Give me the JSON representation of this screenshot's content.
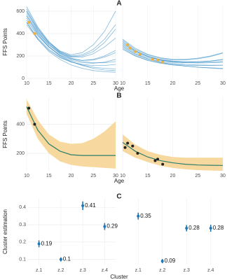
{
  "chart_data": [
    {
      "type": "line",
      "panel": "A",
      "ylabel": "FFS Points",
      "xlabel": "Age",
      "x": [
        10,
        12.5,
        15,
        17.5,
        20,
        22.5,
        25,
        27.5,
        30
      ],
      "xlim": [
        10,
        30
      ],
      "xticks": [
        10,
        15,
        20,
        25,
        30
      ],
      "ylim": [
        0,
        650
      ],
      "yticks": [
        0,
        200,
        400,
        600
      ],
      "color": "#1f7fc0",
      "point_color": "#f0b13c",
      "series": [
        {
          "values": [
            600,
            430,
            310,
            230,
            180,
            160,
            170,
            200,
            250
          ]
        },
        {
          "values": [
            560,
            410,
            300,
            225,
            190,
            190,
            220,
            280,
            360
          ]
        },
        {
          "values": [
            520,
            380,
            280,
            210,
            170,
            150,
            140,
            140,
            150
          ]
        },
        {
          "values": [
            640,
            460,
            330,
            240,
            200,
            210,
            260,
            350,
            480
          ]
        },
        {
          "values": [
            500,
            360,
            260,
            190,
            150,
            120,
            100,
            90,
            85
          ]
        },
        {
          "values": [
            580,
            420,
            300,
            220,
            175,
            160,
            165,
            190,
            230
          ]
        },
        {
          "values": [
            540,
            390,
            280,
            200,
            150,
            115,
            90,
            75,
            70
          ]
        },
        {
          "values": [
            620,
            450,
            320,
            235,
            195,
            200,
            240,
            320,
            440
          ]
        },
        {
          "values": [
            480,
            350,
            250,
            185,
            145,
            125,
            115,
            115,
            125
          ]
        },
        {
          "values": [
            560,
            400,
            285,
            205,
            160,
            140,
            135,
            145,
            170
          ]
        },
        {
          "values": [
            600,
            440,
            320,
            245,
            210,
            230,
            300,
            420,
            600
          ]
        },
        {
          "values": [
            500,
            350,
            240,
            170,
            120,
            90,
            70,
            60,
            55
          ]
        }
      ],
      "points": {
        "x": [
          10.5,
          11.8
        ],
        "y": [
          500,
          400
        ]
      }
    },
    {
      "type": "line",
      "x": [
        10,
        12.5,
        15,
        17.5,
        20,
        22.5,
        25,
        27.5,
        30
      ],
      "xlim": [
        10,
        30
      ],
      "xticks": [
        10,
        15,
        20,
        25,
        30
      ],
      "ylim": [
        0,
        650
      ],
      "color": "#1f7fc0",
      "point_color": "#f0b13c",
      "series": [
        {
          "values": [
            330,
            250,
            200,
            170,
            155,
            150,
            150,
            155,
            165
          ]
        },
        {
          "values": [
            300,
            230,
            185,
            160,
            145,
            140,
            140,
            145,
            150
          ]
        },
        {
          "values": [
            280,
            215,
            175,
            150,
            135,
            125,
            120,
            118,
            118
          ]
        },
        {
          "values": [
            350,
            270,
            215,
            185,
            170,
            170,
            180,
            200,
            230
          ]
        },
        {
          "values": [
            260,
            200,
            160,
            135,
            120,
            110,
            100,
            95,
            90
          ]
        },
        {
          "values": [
            310,
            240,
            195,
            165,
            150,
            145,
            148,
            155,
            170
          ]
        },
        {
          "values": [
            290,
            220,
            175,
            145,
            125,
            110,
            100,
            92,
            85
          ]
        },
        {
          "values": [
            340,
            260,
            210,
            180,
            165,
            165,
            175,
            195,
            225
          ]
        },
        {
          "values": [
            270,
            205,
            165,
            140,
            125,
            118,
            115,
            115,
            118
          ]
        },
        {
          "values": [
            320,
            245,
            195,
            165,
            148,
            140,
            138,
            140,
            145
          ]
        }
      ],
      "points": {
        "x": [
          11,
          11.5,
          12.5,
          13.5,
          16,
          17,
          18
        ],
        "y": [
          300,
          270,
          240,
          215,
          170,
          165,
          145
        ]
      }
    },
    {
      "type": "area",
      "panel": "B",
      "ylabel": "FFS Points",
      "xlabel": "Age",
      "x": [
        10,
        12.5,
        15,
        17.5,
        20,
        22.5,
        25,
        27.5,
        30
      ],
      "xlim": [
        10,
        30
      ],
      "xticks": [
        10,
        15,
        20,
        25,
        30
      ],
      "ylim": [
        80,
        580
      ],
      "yticks": [
        200,
        400
      ],
      "color": "#2e7d6b",
      "band_color": "#f7d9a0",
      "point_color": "#222222",
      "values": [
        520,
        360,
        265,
        215,
        190,
        185,
        185,
        185,
        185
      ],
      "lower": [
        470,
        300,
        200,
        145,
        120,
        110,
        105,
        100,
        95
      ],
      "upper": [
        570,
        430,
        330,
        280,
        265,
        270,
        300,
        350,
        420
      ],
      "points": {
        "x": [
          10.5,
          11.8
        ],
        "y": [
          510,
          400
        ]
      }
    },
    {
      "type": "area",
      "x": [
        10,
        12.5,
        15,
        17.5,
        20,
        22.5,
        25,
        27.5,
        30
      ],
      "xlim": [
        10,
        30
      ],
      "xticks": [
        10,
        15,
        20,
        25,
        30
      ],
      "ylim": [
        80,
        580
      ],
      "color": "#2e7d6b",
      "band_color": "#f7d9a0",
      "point_color": "#222222",
      "values": [
        275,
        215,
        175,
        150,
        135,
        125,
        120,
        118,
        117
      ],
      "lower": [
        215,
        170,
        140,
        115,
        100,
        90,
        85,
        82,
        80
      ],
      "upper": [
        330,
        260,
        215,
        190,
        175,
        170,
        170,
        170,
        170
      ],
      "points": {
        "x": [
          10.5,
          11,
          12,
          13,
          16.5,
          17,
          18
        ],
        "y": [
          240,
          270,
          250,
          200,
          150,
          160,
          125
        ]
      }
    },
    {
      "type": "scatter",
      "panel": "C",
      "ylabel": "Cluster estimation",
      "xlabel": "Cluster",
      "categories": [
        "z.1",
        "z.2",
        "z.3",
        "z.4"
      ],
      "ylim": [
        0.07,
        0.45
      ],
      "yticks": [
        0.1,
        0.2,
        0.3,
        0.4
      ],
      "color": "#1f78b4",
      "values": [
        0.19,
        0.1,
        0.41,
        0.29
      ],
      "errors": [
        0.02,
        0.012,
        0.025,
        0.02
      ]
    },
    {
      "type": "scatter",
      "categories": [
        "z.1",
        "z.2",
        "z.3",
        "z.4"
      ],
      "ylim": [
        0.07,
        0.45
      ],
      "color": "#1f78b4",
      "values": [
        0.35,
        0.09,
        0.28,
        0.28
      ],
      "errors": [
        0.02,
        0.012,
        0.018,
        0.02
      ]
    }
  ]
}
